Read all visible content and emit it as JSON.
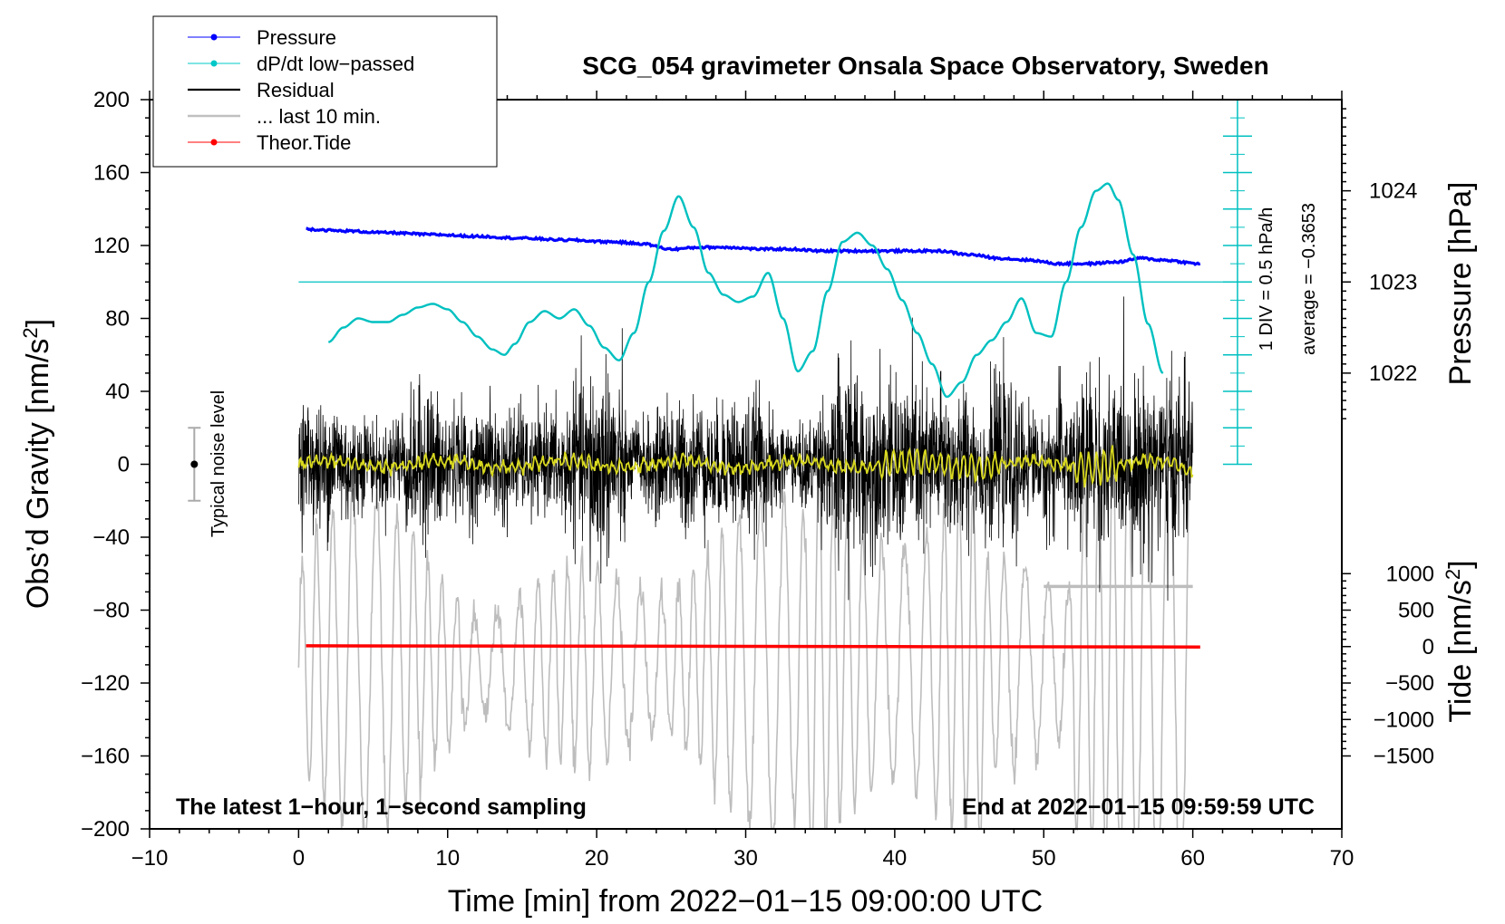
{
  "chart_data": {
    "type": "line",
    "title": "SCG_054 gravimeter Onsala Space Observatory, Sweden",
    "xlabel": "Time [min] from 2022−01−15 09:00:00 UTC",
    "ylabel": "Obs’d Gravity [nm/s",
    "ylabel_sup": "2",
    "ylabel_close": "]",
    "right_pressure_label": "Pressure [hPa]",
    "right_tide_label": "Tide [nm/s",
    "right_tide_sup": "2",
    "right_tide_close": "]",
    "xlim": [
      -10,
      70
    ],
    "ylim": [
      -200,
      200
    ],
    "x_ticks": [
      -10,
      0,
      10,
      20,
      30,
      40,
      50,
      60,
      70
    ],
    "x_tick_labels": [
      "−10",
      "0",
      "10",
      "20",
      "30",
      "40",
      "50",
      "60",
      "70"
    ],
    "y_ticks": [
      200,
      160,
      120,
      80,
      40,
      0,
      -40,
      -80,
      -120,
      -160,
      -200
    ],
    "y_tick_labels": [
      "200",
      "160",
      "120",
      "80",
      "40",
      "0",
      "−40",
      "−80",
      "−120",
      "−160",
      "−200"
    ],
    "pressure_ticks": [
      1024,
      1023,
      1022
    ],
    "pressure_tick_labels": [
      "1024",
      "1023",
      "1022"
    ],
    "pressure_to_gravity": {
      "slope": 50,
      "offset": -51050
    },
    "tide_ticks": [
      1000,
      500,
      0,
      -500,
      -1000,
      -1500
    ],
    "tide_tick_labels": [
      "1000",
      "500",
      "0",
      "−500",
      "−1000",
      "−1500"
    ],
    "tide_to_gravity": {
      "slope": 0.04,
      "offset": -100
    },
    "legend": [
      {
        "label": "Pressure",
        "color": "#0000ff",
        "marker": true
      },
      {
        "label": "dP/dt low−passed",
        "color": "#00c8c8",
        "marker": true
      },
      {
        "label": "Residual",
        "color": "#000000",
        "marker": false
      },
      {
        "label": "... last 10 min.",
        "color": "#c0c0c0",
        "marker": false
      },
      {
        "label": "Theor.Tide",
        "color": "#ff0000",
        "marker": true
      }
    ],
    "colors": {
      "pressure": "#0000ff",
      "dpdt": "#00c0c0",
      "residual": "#000000",
      "smoothed": "#d8d820",
      "last10": "#bdbdbd",
      "tide": "#ff0000"
    },
    "annotations": {
      "bottom_left": "The latest 1−hour, 1−second sampling",
      "bottom_right": "End at 2022−01−15 09:59:59 UTC",
      "noise_label": "Typical noise level",
      "dpdt_scale": "1 DIV = 0.5 hPa/h",
      "dpdt_average": "average = −0.3653"
    },
    "noise_bar": {
      "x": -7,
      "center": 0,
      "half_range": 20
    },
    "dpdt_scale_axis": {
      "x": 63,
      "zero_y": 100,
      "bottom_y": 0,
      "top_y": 200,
      "major_step": 20,
      "minor_step": 10
    },
    "series": [
      {
        "name": "Pressure",
        "x": [
          0.5,
          3,
          6,
          9,
          12,
          15,
          18,
          21,
          23,
          25,
          27,
          29,
          31,
          33,
          35,
          37,
          39,
          41,
          43,
          45,
          47,
          49,
          51,
          53,
          55,
          56.5,
          58,
          60.5
        ],
        "y": [
          129,
          128,
          127,
          126,
          125,
          124,
          123,
          122,
          121,
          118,
          119,
          119,
          118,
          118,
          117,
          117,
          117,
          117,
          117,
          115,
          113,
          112,
          110,
          110,
          111,
          113,
          112,
          110
        ]
      },
      {
        "name": "dP/dt low-passed",
        "x": [
          2,
          3,
          4,
          5,
          6,
          7,
          8,
          9,
          10,
          11,
          12,
          13,
          13.8,
          14.5,
          15.5,
          16.5,
          17.5,
          18.5,
          19.5,
          20.5,
          21.5,
          22.5,
          23.5,
          24.5,
          25.5,
          26.5,
          27.5,
          28.5,
          29.5,
          30.5,
          31.5,
          32.5,
          33.5,
          34.5,
          35.5,
          36.5,
          37.5,
          38.5,
          39.5,
          40.5,
          41.5,
          42.5,
          43.5,
          44.5,
          45.5,
          46.5,
          47.5,
          48.5,
          49.5,
          50.5,
          51.5,
          52.5,
          53.5,
          54.3,
          55,
          56,
          57,
          58
        ],
        "y": [
          67,
          75,
          80,
          78,
          78,
          82,
          86,
          88,
          85,
          78,
          70,
          63,
          60,
          66,
          78,
          84,
          80,
          85,
          76,
          64,
          57,
          72,
          100,
          128,
          147,
          130,
          105,
          93,
          89,
          92,
          105,
          80,
          51,
          62,
          95,
          122,
          127,
          120,
          107,
          90,
          72,
          55,
          37,
          45,
          60,
          68,
          78,
          91,
          72,
          70,
          100,
          130,
          150,
          154,
          145,
          115,
          77,
          50
        ]
      },
      {
        "name": "Theor.Tide",
        "x": [
          0.5,
          10,
          20,
          30,
          40,
          50,
          60.5
        ],
        "y": [
          -99.6,
          -99.7,
          -99.8,
          -99.9,
          -100.0,
          -100.1,
          -100.2
        ]
      }
    ],
    "last10_bar": {
      "x": [
        50,
        60
      ],
      "y": -67
    }
  }
}
